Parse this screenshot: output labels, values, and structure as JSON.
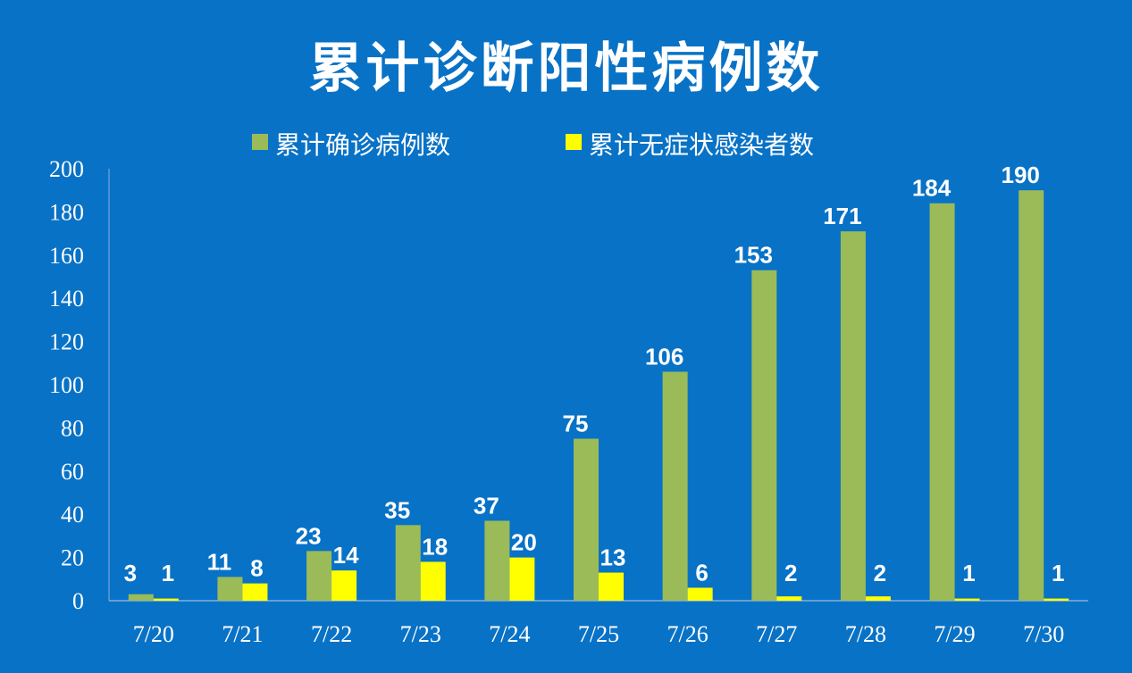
{
  "chart_data": {
    "type": "bar",
    "title": "累计诊断阳性病例数",
    "categories": [
      "7/20",
      "7/21",
      "7/22",
      "7/23",
      "7/24",
      "7/25",
      "7/26",
      "7/27",
      "7/28",
      "7/29",
      "7/30"
    ],
    "series": [
      {
        "name": "累计确诊病例数",
        "color": "#9bbb59",
        "values": [
          3,
          11,
          23,
          35,
          37,
          75,
          106,
          153,
          171,
          184,
          190
        ]
      },
      {
        "name": "累计无症状感染者数",
        "color": "#ffff00",
        "values": [
          1,
          8,
          14,
          18,
          20,
          13,
          6,
          2,
          2,
          1,
          1
        ]
      }
    ],
    "ylim": [
      0,
      200
    ],
    "yticks": [
      0,
      20,
      40,
      60,
      80,
      100,
      120,
      140,
      160,
      180,
      200
    ],
    "grid": false,
    "legend_position": "top-center",
    "background_color": "#0872c6"
  }
}
